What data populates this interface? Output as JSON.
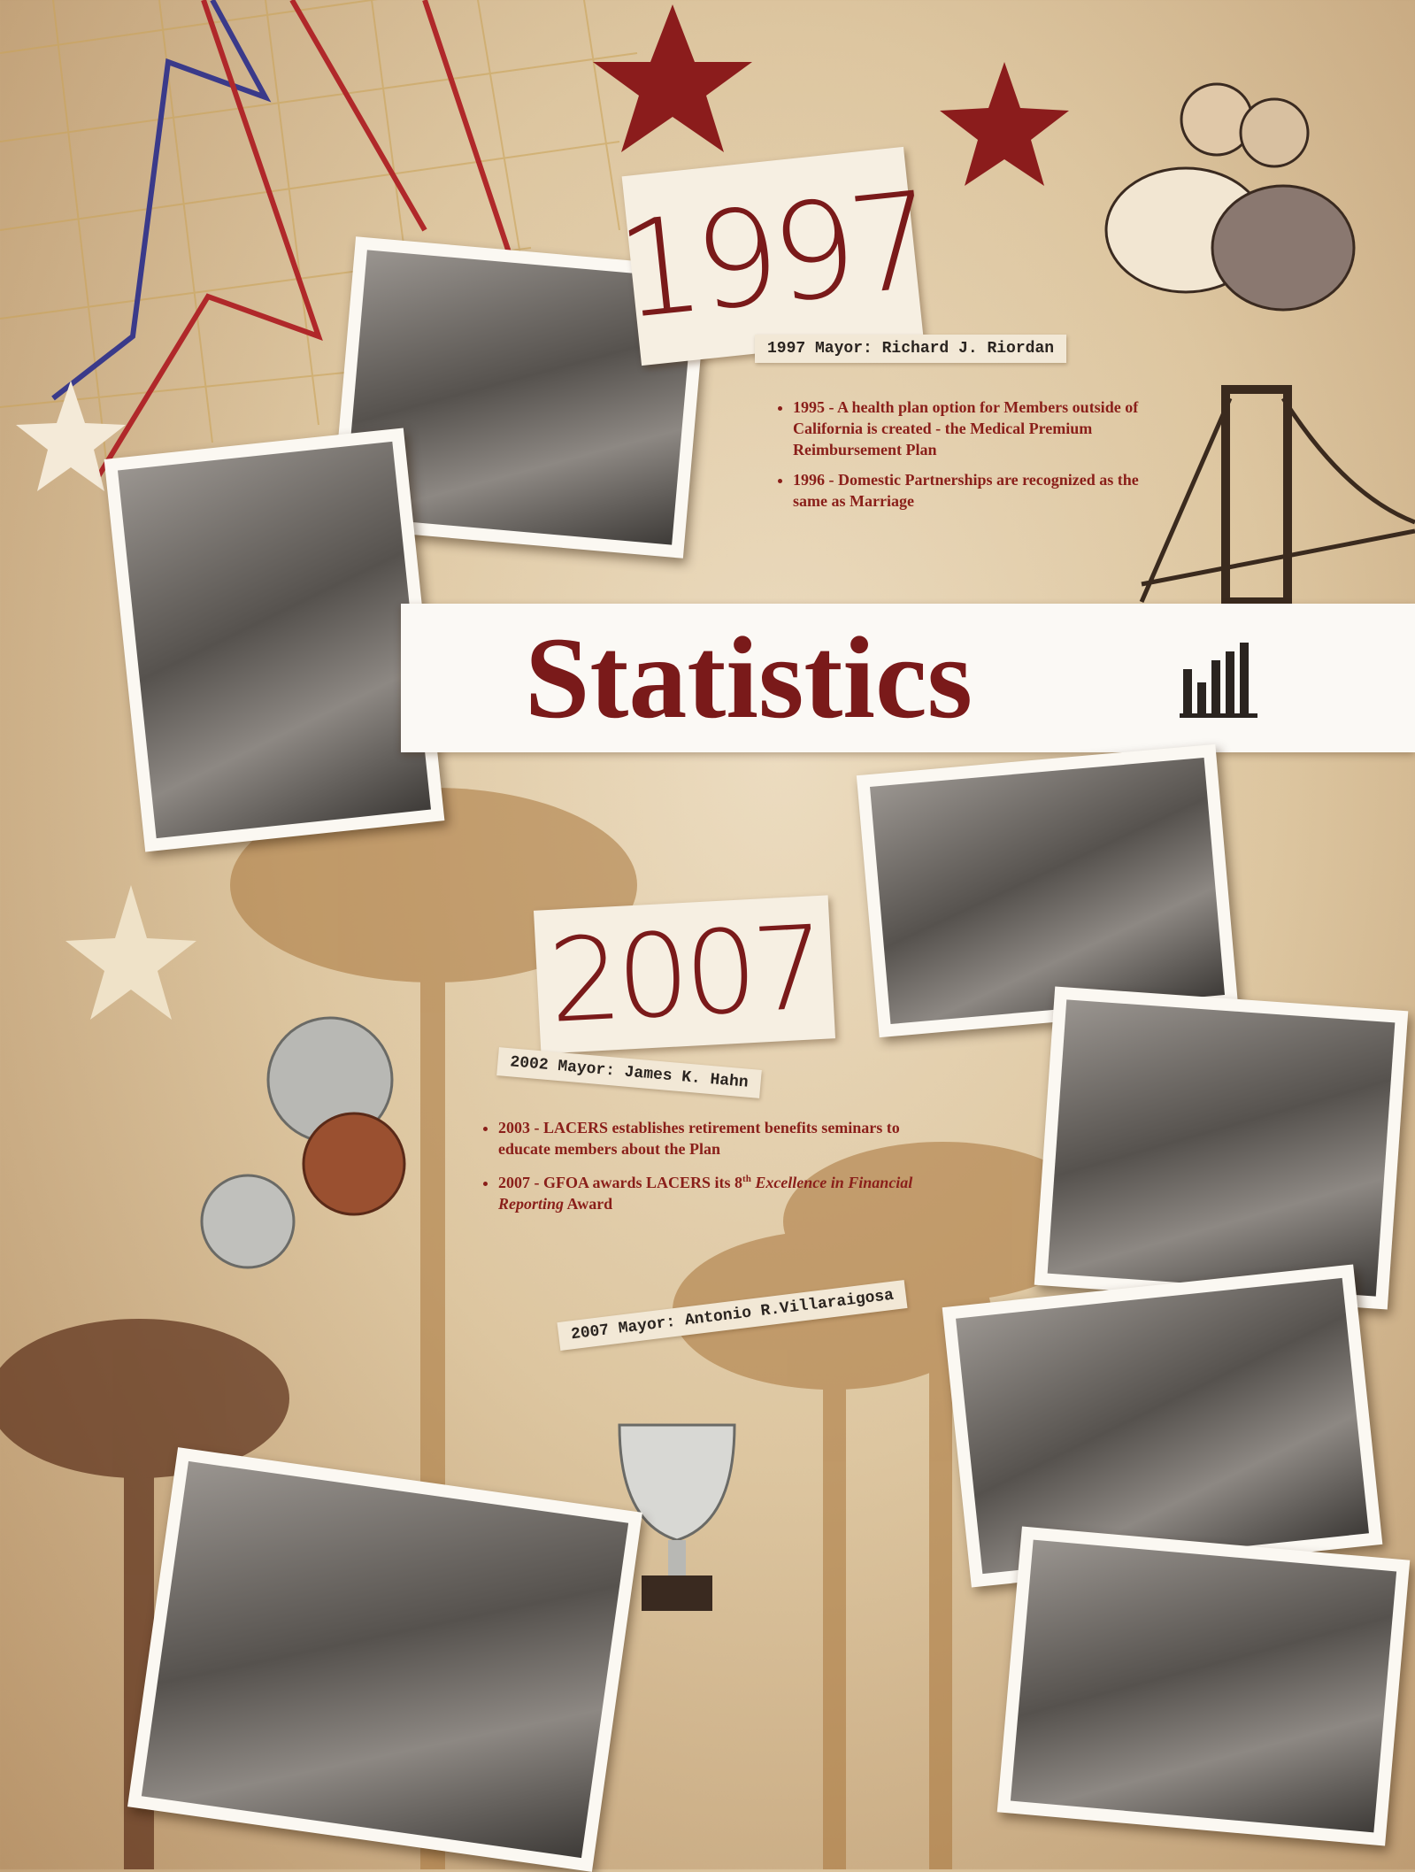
{
  "header": {
    "title": "Statistics"
  },
  "section_1997": {
    "year": "1997",
    "mayor": "1997 Mayor: Richard J. Riordan",
    "bullets": [
      "1995 - A health plan option for Members outside of California is created - the Medical Premium Reimbursement Plan",
      "1996 - Domestic Partnerships are recognized as the same as Marriage"
    ]
  },
  "section_2007": {
    "year": "2007",
    "mayor_2002": "2002 Mayor: James K. Hahn",
    "bullets": [
      "2003 - LACERS establishes retirement benefits seminars to educate members about the Plan"
    ],
    "award_bullet": {
      "before": "2007 - GFOA awards LACERS its",
      "ordinal": "8",
      "ordinal_suffix": "th",
      "italic": "Excellence in Financial Reporting",
      "after": "Award"
    },
    "mayor_2007": "2007 Mayor: Antonio R.Villaraigosa"
  }
}
